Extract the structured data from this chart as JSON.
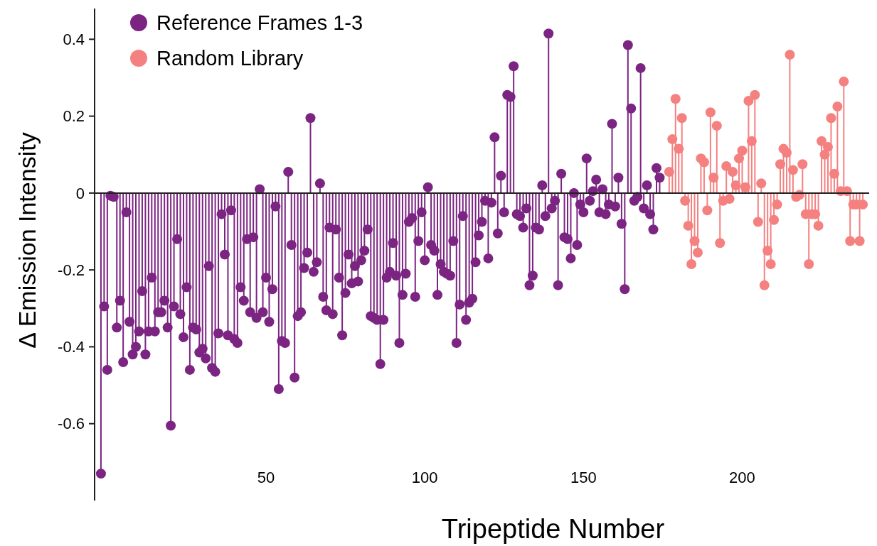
{
  "chart_data": {
    "type": "lollipop",
    "xlabel": "Tripeptide Number",
    "ylabel": "Δ Emission Intensity",
    "xlim": [
      -4,
      240
    ],
    "ylim": [
      -0.8,
      0.48
    ],
    "xticks": [
      50,
      100,
      150,
      200
    ],
    "yticks": [
      -0.6,
      -0.4,
      -0.2,
      0,
      0.2,
      0.4
    ],
    "marker": "circle",
    "legend": "top left",
    "grid": false,
    "ref_lines": [
      {
        "axis": "y",
        "value": 0,
        "color": "#231f20"
      }
    ],
    "series": [
      {
        "name": "Reference Frames 1-3",
        "color": "#7b2482",
        "x": [
          -2,
          -1,
          0,
          1,
          2,
          3,
          4,
          5,
          6,
          7,
          8,
          9,
          10,
          11,
          12,
          13,
          14,
          15,
          16,
          17,
          18,
          19,
          20,
          21,
          22,
          23,
          24,
          25,
          26,
          27,
          28,
          29,
          30,
          31,
          32,
          33,
          34,
          35,
          36,
          37,
          38,
          39,
          40,
          41,
          42,
          43,
          44,
          45,
          46,
          47,
          48,
          49,
          50,
          51,
          52,
          53,
          54,
          55,
          56,
          57,
          58,
          59,
          60,
          61,
          62,
          63,
          64,
          65,
          66,
          67,
          68,
          69,
          70,
          71,
          72,
          73,
          74,
          75,
          76,
          77,
          78,
          79,
          80,
          81,
          82,
          83,
          84,
          85,
          86,
          87,
          88,
          89,
          90,
          91,
          92,
          93,
          94,
          95,
          96,
          97,
          98,
          99,
          100,
          101,
          102,
          103,
          104,
          105,
          106,
          107,
          108,
          109,
          110,
          111,
          112,
          113,
          114,
          115,
          116,
          117,
          118,
          119,
          120,
          121,
          122,
          123,
          124,
          125,
          126,
          127,
          128,
          129,
          130,
          131,
          132,
          133,
          134,
          135,
          136,
          137,
          138,
          139,
          140,
          141,
          142,
          143,
          144,
          145,
          146,
          147,
          148,
          149,
          150,
          151,
          152,
          153,
          154,
          155,
          156,
          157,
          158,
          159,
          160,
          161,
          162,
          163,
          164,
          165,
          166,
          167,
          168,
          169,
          170,
          171,
          172,
          173,
          174
        ],
        "values": [
          -0.73,
          -0.295,
          -0.46,
          -0.007,
          -0.01,
          -0.35,
          -0.28,
          -0.44,
          -0.05,
          -0.335,
          -0.42,
          -0.4,
          -0.36,
          -0.255,
          -0.42,
          -0.36,
          -0.22,
          -0.36,
          -0.31,
          -0.31,
          -0.28,
          -0.35,
          -0.605,
          -0.295,
          -0.12,
          -0.315,
          -0.375,
          -0.245,
          -0.46,
          -0.35,
          -0.355,
          -0.415,
          -0.405,
          -0.43,
          -0.19,
          -0.455,
          -0.465,
          -0.365,
          -0.055,
          -0.16,
          -0.37,
          -0.045,
          -0.38,
          -0.39,
          -0.245,
          -0.28,
          -0.12,
          -0.31,
          -0.115,
          -0.325,
          0.01,
          -0.31,
          -0.22,
          -0.335,
          -0.25,
          -0.035,
          -0.51,
          -0.385,
          -0.39,
          0.055,
          -0.135,
          -0.48,
          -0.32,
          -0.31,
          -0.195,
          -0.155,
          0.195,
          -0.205,
          -0.18,
          0.025,
          -0.27,
          -0.305,
          -0.09,
          -0.315,
          -0.095,
          -0.22,
          -0.37,
          -0.26,
          -0.16,
          -0.235,
          -0.19,
          -0.23,
          -0.175,
          -0.15,
          -0.095,
          -0.32,
          -0.325,
          -0.33,
          -0.445,
          -0.33,
          -0.22,
          -0.205,
          -0.13,
          -0.215,
          -0.39,
          -0.265,
          -0.21,
          -0.075,
          -0.065,
          -0.27,
          -0.125,
          -0.05,
          -0.175,
          0.015,
          -0.135,
          -0.15,
          -0.265,
          -0.185,
          -0.205,
          -0.21,
          -0.215,
          -0.125,
          -0.39,
          -0.29,
          -0.06,
          -0.33,
          -0.285,
          -0.275,
          -0.18,
          -0.11,
          -0.075,
          -0.02,
          -0.17,
          -0.025,
          0.145,
          -0.105,
          0.045,
          -0.05,
          0.255,
          0.25,
          0.33,
          -0.055,
          -0.06,
          -0.09,
          -0.04,
          -0.24,
          -0.215,
          -0.09,
          -0.095,
          0.02,
          -0.06,
          0.415,
          -0.04,
          -0.02,
          -0.24,
          0.05,
          -0.115,
          -0.12,
          -0.17,
          0.0,
          -0.135,
          -0.03,
          -0.05,
          0.09,
          -0.02,
          0.005,
          0.035,
          -0.05,
          0.01,
          -0.055,
          -0.03,
          0.18,
          -0.035,
          0.04,
          -0.08,
          -0.25,
          0.385,
          0.22,
          -0.02,
          -0.01,
          0.325,
          -0.04,
          0.02,
          -0.055,
          -0.095,
          0.065,
          0.04
        ]
      },
      {
        "name": "Random Library",
        "color": "#f58080",
        "x": [
          177,
          178,
          179,
          180,
          181,
          182,
          183,
          184,
          185,
          186,
          187,
          188,
          189,
          190,
          191,
          192,
          193,
          194,
          195,
          196,
          197,
          198,
          199,
          200,
          201,
          202,
          203,
          204,
          205,
          206,
          207,
          208,
          209,
          210,
          211,
          212,
          213,
          214,
          215,
          216,
          217,
          218,
          219,
          220,
          221,
          222,
          223,
          224,
          225,
          226,
          227,
          228,
          229,
          230,
          231,
          232,
          233,
          234,
          235,
          236,
          237,
          238
        ],
        "values": [
          0.055,
          0.14,
          0.245,
          0.115,
          0.195,
          -0.02,
          -0.085,
          -0.185,
          -0.125,
          -0.155,
          0.09,
          0.08,
          -0.045,
          0.21,
          0.04,
          0.175,
          -0.13,
          -0.02,
          0.07,
          -0.015,
          0.055,
          0.02,
          0.09,
          0.11,
          0.015,
          0.24,
          0.135,
          0.255,
          -0.075,
          0.025,
          -0.24,
          -0.15,
          -0.185,
          -0.07,
          -0.03,
          0.075,
          0.115,
          0.105,
          0.36,
          0.06,
          -0.01,
          -0.005,
          0.075,
          -0.055,
          -0.185,
          -0.055,
          -0.055,
          -0.085,
          0.135,
          0.1,
          0.12,
          0.195,
          0.05,
          0.225,
          0.005,
          0.29,
          0.005,
          -0.125,
          -0.03,
          -0.03,
          -0.125,
          -0.03
        ]
      }
    ]
  }
}
